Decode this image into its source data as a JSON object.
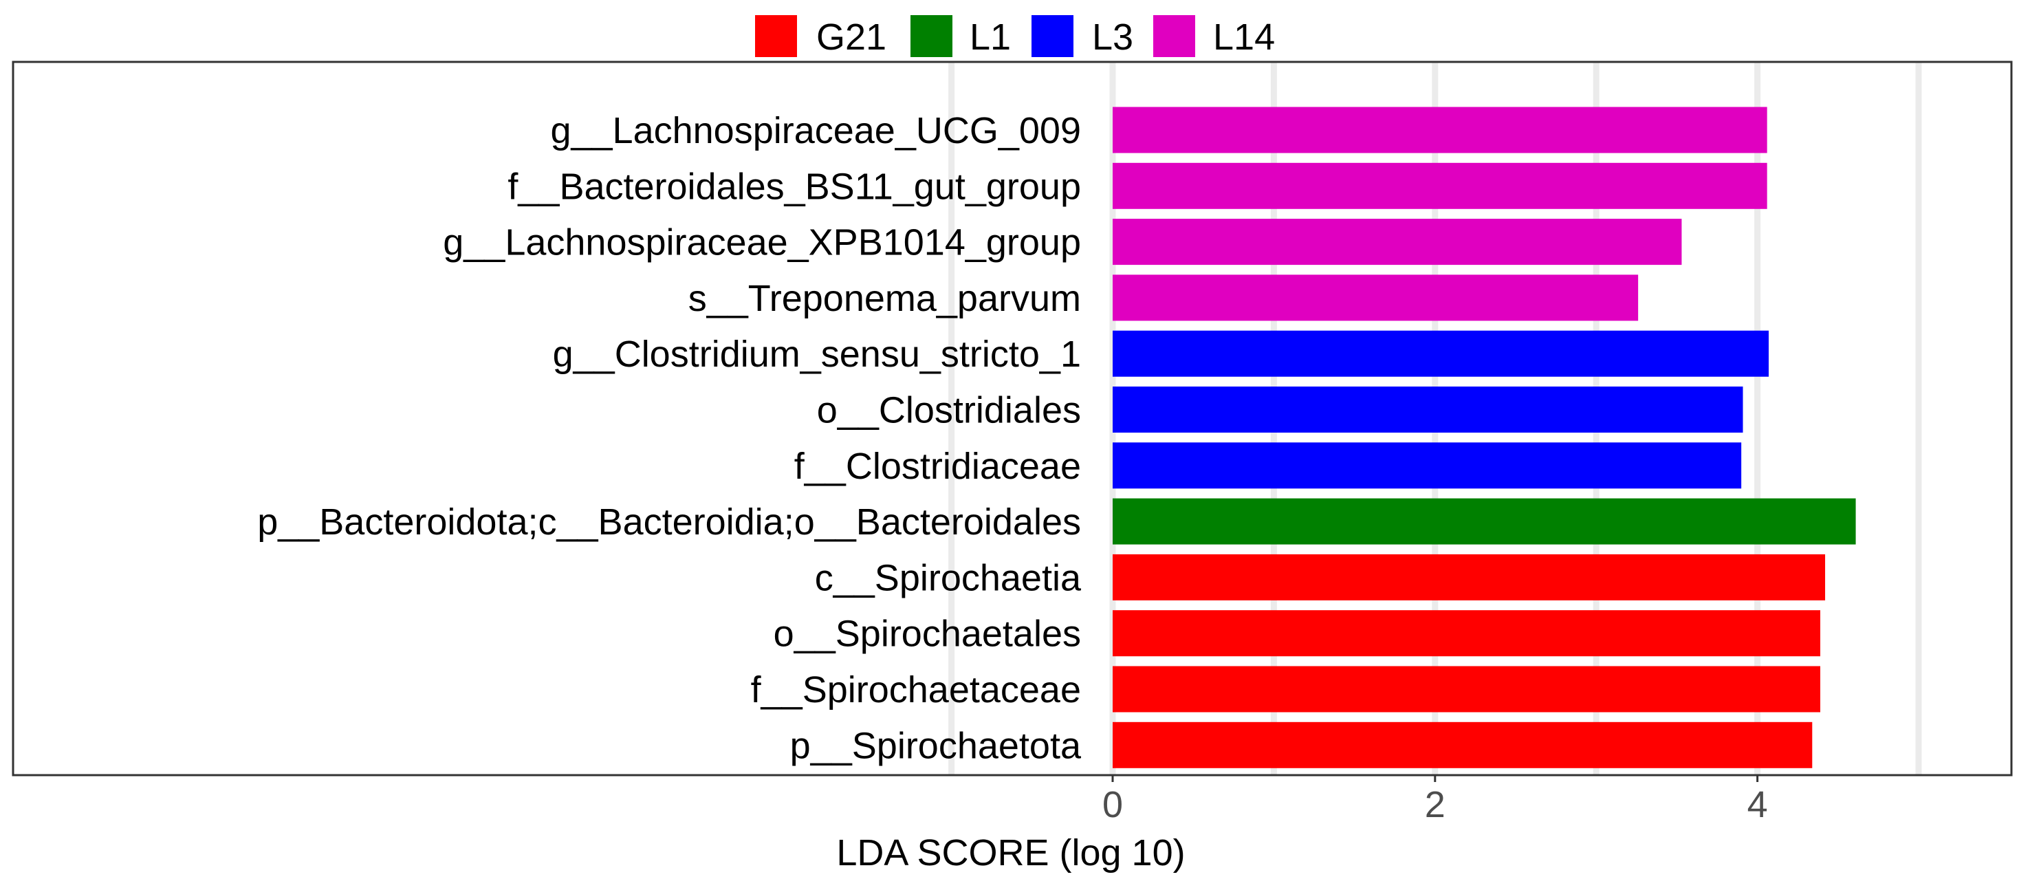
{
  "chart_data": {
    "type": "bar",
    "orientation": "horizontal",
    "title": "",
    "xlabel": "LDA SCORE (log 10)",
    "ylabel": "",
    "xticks": [
      0,
      2,
      4
    ],
    "xtick_labels": [
      "0",
      "2",
      "4"
    ],
    "grid_x": [
      -1,
      0,
      1,
      2,
      3,
      4,
      5
    ],
    "xlim": [
      -6.82,
      5.58
    ],
    "legend": {
      "placement": "top",
      "entries": [
        {
          "name": "G21",
          "color": "#FF0000"
        },
        {
          "name": "L1",
          "color": "#008000"
        },
        {
          "name": "L3",
          "color": "#0000FF"
        },
        {
          "name": "L14",
          "color": "#E000C0"
        }
      ]
    },
    "categories": [
      "g__Lachnospiraceae_UCG_009",
      "f__Bacteroidales_BS11_gut_group",
      "g__Lachnospiraceae_XPB1014_group",
      "s__Treponema_parvum",
      "g__Clostridium_sensu_stricto_1",
      "o__Clostridiales",
      "f__Clostridiaceae",
      "p__Bacteroidota;c__Bacteroidia;o__Bacteroidales",
      "c__Spirochaetia",
      "o__Spirochaetales",
      "f__Spirochaetaceae",
      "p__Spirochaetota"
    ],
    "values": [
      4.06,
      4.06,
      3.53,
      3.26,
      4.07,
      3.91,
      3.9,
      4.61,
      4.42,
      4.39,
      4.39,
      4.34
    ],
    "groups": [
      "L14",
      "L14",
      "L14",
      "L14",
      "L3",
      "L3",
      "L3",
      "L1",
      "G21",
      "G21",
      "G21",
      "G21"
    ]
  }
}
